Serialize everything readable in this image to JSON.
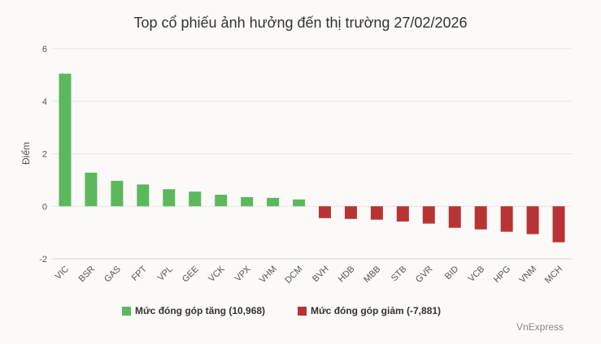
{
  "header": {
    "title": "Top cổ phiếu ảnh hưởng đến thị trường 27/02/2026"
  },
  "legend": {
    "up_label": "Mức đóng góp tăng (10,968)",
    "down_label": "Mức đóng góp giảm (-7,881)"
  },
  "footer": {
    "credit": "VnExpress"
  },
  "colors": {
    "up": "#5cb85c",
    "down": "#b83434",
    "grid": "#e6e6e6",
    "axis": "#cfd8e6"
  },
  "chart_data": {
    "type": "bar",
    "title": "Top cổ phiếu ảnh hưởng đến thị trường 27/02/2026",
    "xlabel": "",
    "ylabel": "Điểm",
    "ylim": [
      -2,
      6
    ],
    "yticks": [
      -2,
      0,
      2,
      4,
      6
    ],
    "grid": true,
    "legend_position": "bottom",
    "categories": [
      "VIC",
      "BSR",
      "GAS",
      "FPT",
      "VPL",
      "GEE",
      "VCK",
      "VPX",
      "VHM",
      "DCM",
      "BVH",
      "HDB",
      "MBB",
      "STB",
      "GVR",
      "BID",
      "VCB",
      "HPG",
      "VNM",
      "MCH"
    ],
    "values": [
      5.05,
      1.28,
      0.97,
      0.83,
      0.65,
      0.56,
      0.44,
      0.35,
      0.32,
      0.26,
      -0.45,
      -0.48,
      -0.51,
      -0.58,
      -0.66,
      -0.82,
      -0.88,
      -0.97,
      -1.06,
      -1.37
    ]
  }
}
